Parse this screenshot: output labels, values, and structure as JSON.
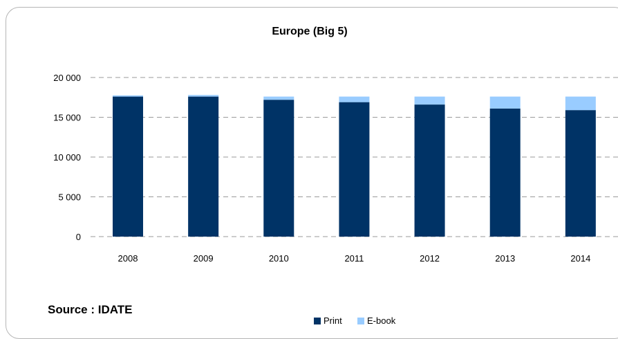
{
  "chart_data": {
    "type": "bar",
    "stacked": true,
    "title": "Europe (Big 5)",
    "categories": [
      "2008",
      "2009",
      "2010",
      "2011",
      "2012",
      "2013",
      "2014"
    ],
    "series": [
      {
        "name": "Print",
        "color": "#003366",
        "values": [
          17600,
          17600,
          17200,
          16900,
          16600,
          16100,
          15900
        ]
      },
      {
        "name": "E-book",
        "color": "#99ccff",
        "values": [
          150,
          200,
          400,
          700,
          1000,
          1500,
          1700
        ]
      }
    ],
    "y_ticks": [
      0,
      5000,
      10000,
      15000,
      20000
    ],
    "y_tick_labels": [
      "0",
      "5 000",
      "10 000",
      "15 000",
      "20 000"
    ],
    "ylim": [
      0,
      20000
    ],
    "grid": "dashed horizontal",
    "legend_position": "bottom-center"
  },
  "source_note": "Source : IDATE"
}
